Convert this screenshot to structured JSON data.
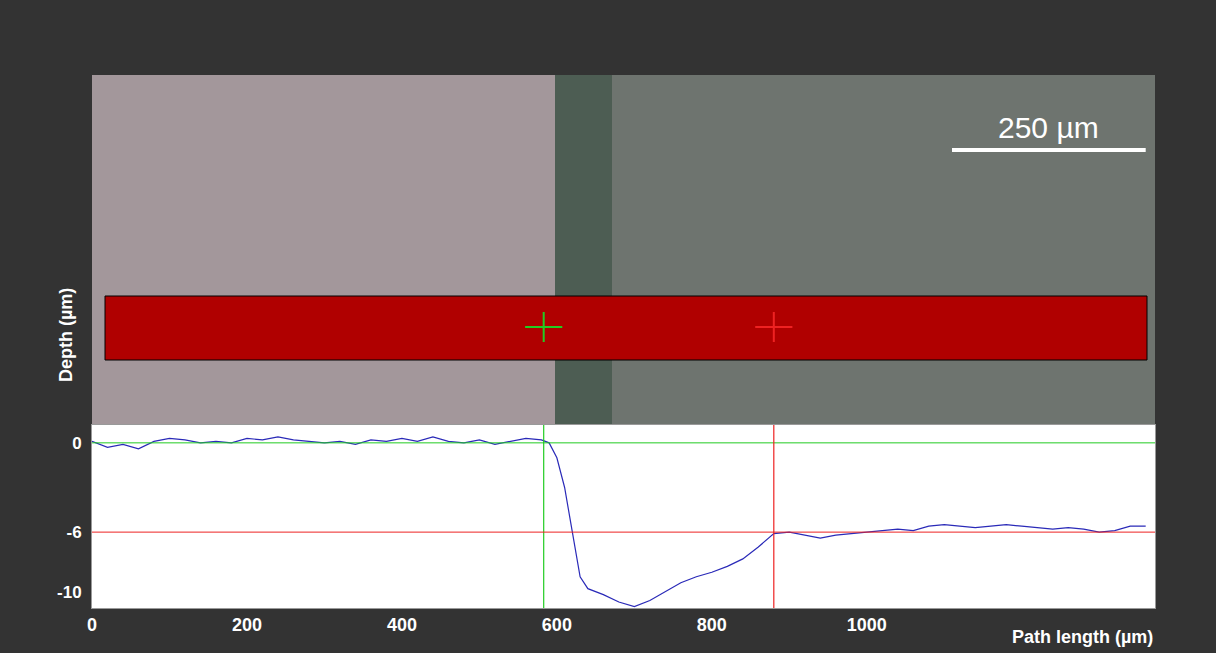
{
  "chart_data": {
    "type": "line",
    "x_label": "Path length (µm)",
    "y_label": "Depth (µm)",
    "color": "#2a2ab8",
    "grid": false,
    "xlim": [
      0,
      1372
    ],
    "ylim": [
      -11.1,
      1.2
    ],
    "xticks": [
      0,
      200,
      400,
      600,
      800,
      1000
    ],
    "yticks": [
      -10,
      -6,
      0
    ],
    "x": [
      0,
      20,
      40,
      60,
      80,
      100,
      120,
      140,
      160,
      180,
      200,
      220,
      240,
      260,
      280,
      300,
      320,
      340,
      360,
      380,
      400,
      420,
      440,
      460,
      480,
      500,
      520,
      540,
      560,
      580,
      590,
      600,
      610,
      620,
      630,
      640,
      660,
      680,
      700,
      720,
      740,
      760,
      780,
      800,
      820,
      840,
      860,
      880,
      900,
      920,
      940,
      960,
      980,
      1000,
      1020,
      1040,
      1060,
      1080,
      1100,
      1120,
      1140,
      1160,
      1180,
      1200,
      1220,
      1240,
      1260,
      1280,
      1300,
      1320,
      1340,
      1360
    ],
    "values": [
      0.1,
      -0.3,
      -0.1,
      -0.4,
      0.1,
      0.3,
      0.2,
      0.0,
      0.1,
      0.0,
      0.3,
      0.2,
      0.4,
      0.2,
      0.1,
      0.0,
      0.1,
      -0.1,
      0.2,
      0.1,
      0.3,
      0.1,
      0.4,
      0.1,
      0.0,
      0.2,
      -0.1,
      0.1,
      0.3,
      0.2,
      0.0,
      -1.0,
      -3.0,
      -6.0,
      -9.0,
      -9.8,
      -10.2,
      -10.7,
      -11.0,
      -10.6,
      -10.0,
      -9.4,
      -9.0,
      -8.7,
      -8.3,
      -7.8,
      -7.0,
      -6.1,
      -6.0,
      -6.2,
      -6.4,
      -6.2,
      -6.1,
      -6.0,
      -5.9,
      -5.8,
      -5.9,
      -5.6,
      -5.5,
      -5.6,
      -5.7,
      -5.6,
      -5.5,
      -5.6,
      -5.7,
      -5.8,
      -5.7,
      -5.8,
      -6.0,
      -5.9,
      -5.6,
      -5.6
    ],
    "cursors": [
      {
        "x": 583,
        "y": 0,
        "color": "#22cc22"
      },
      {
        "x": 880,
        "y": -6,
        "color": "#ee2222"
      }
    ],
    "scale_bar": {
      "label": "250 µm",
      "length": 250
    }
  }
}
